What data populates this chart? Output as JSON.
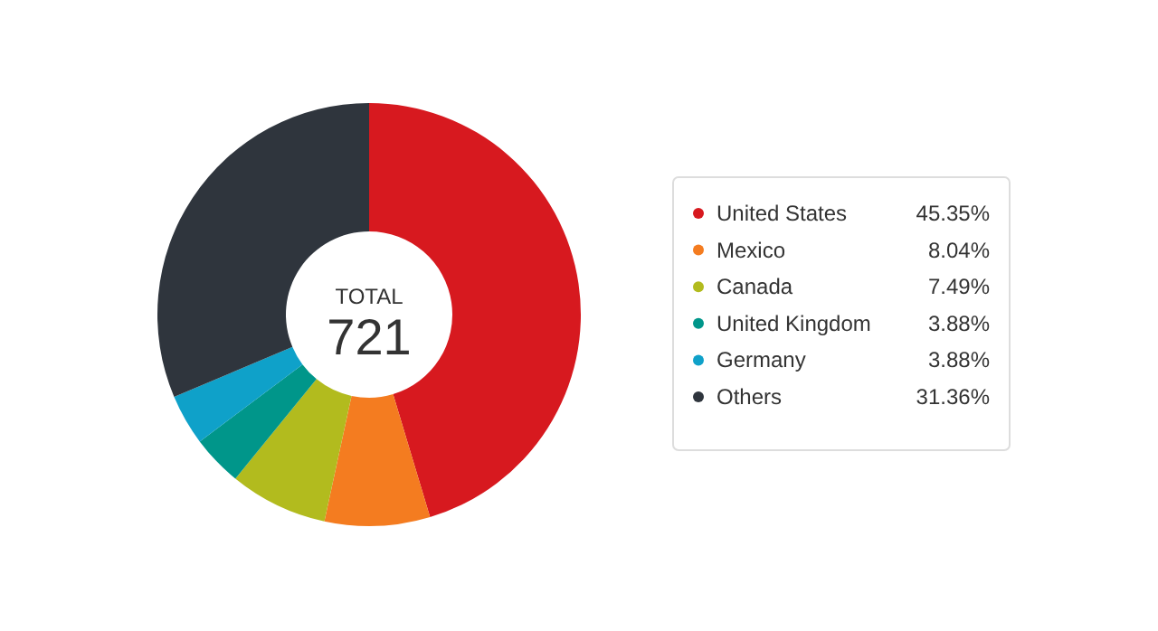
{
  "chart_data": {
    "type": "donut",
    "categories": [
      "United States",
      "Mexico",
      "Canada",
      "United Kingdom",
      "Germany",
      "Others"
    ],
    "values": [
      45.35,
      8.04,
      7.49,
      3.88,
      3.88,
      31.36
    ],
    "value_labels": [
      "45.35%",
      "8.04%",
      "7.49%",
      "3.88%",
      "3.88%",
      "31.36%"
    ],
    "colors": [
      "#d7191f",
      "#f47c20",
      "#b2bb1e",
      "#00968a",
      "#0fa1c9",
      "#2f353d"
    ],
    "annotations": [
      "TOTAL",
      "721"
    ],
    "legend": "right"
  }
}
